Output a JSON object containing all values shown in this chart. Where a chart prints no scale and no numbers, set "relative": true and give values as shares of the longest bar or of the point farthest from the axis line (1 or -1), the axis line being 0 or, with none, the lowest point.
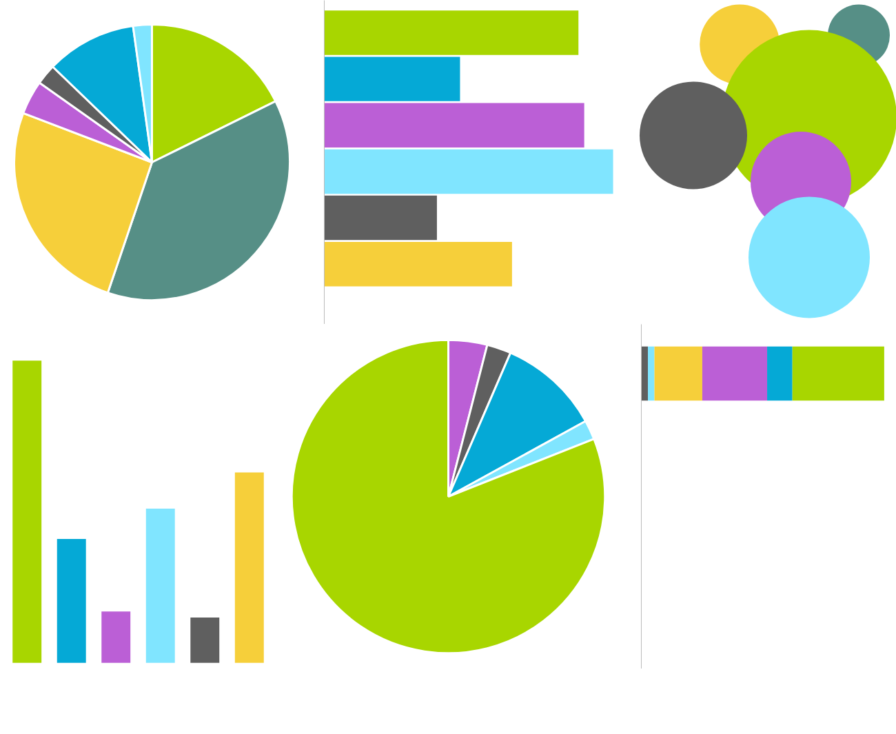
{
  "chart_data": [
    {
      "type": "pie",
      "categories": [
        null,
        null,
        null,
        null,
        null,
        null,
        null
      ],
      "values": [
        17.7,
        37.5,
        25.6,
        4,
        2.4,
        10.6,
        2.2
      ],
      "colors": [
        "#a8d600",
        "#568f86",
        "#f6cf3a",
        "#bb5fd6",
        "#5f5f5f",
        "#05a9d6",
        "#80e5ff"
      ]
    },
    {
      "type": "bar",
      "orientation": "horizontal",
      "relative": true,
      "categories": [
        null,
        null,
        null,
        null,
        null,
        null
      ],
      "values": [
        0.88,
        0.47,
        0.9,
        1,
        0.39,
        0.65
      ],
      "colors": [
        "#a8d600",
        "#05a9d6",
        "#bb5fd6",
        "#80e5ff",
        "#5f5f5f",
        "#f6cf3a"
      ]
    },
    {
      "type": "other",
      "colors": [
        "#f6cf3a",
        "#568f86",
        "#a8d600",
        "#5f5f5f",
        "#bb5fd6",
        "#80e5ff"
      ]
    },
    {
      "type": "bar",
      "relative": true,
      "categories": [
        null,
        null,
        null,
        null,
        null,
        null
      ],
      "values": [
        1,
        0.41,
        0.17,
        0.51,
        0.15,
        0.63
      ],
      "colors": [
        "#a8d600",
        "#05a9d6",
        "#bb5fd6",
        "#80e5ff",
        "#5f5f5f",
        "#f6cf3a"
      ]
    },
    {
      "type": "pie",
      "categories": [
        null,
        null,
        null,
        null,
        null
      ],
      "values": [
        4,
        2.5,
        10.5,
        2,
        81
      ],
      "colors": [
        "#bb5fd6",
        "#5f5f5f",
        "#05a9d6",
        "#80e5ff",
        "#a8d600"
      ]
    },
    {
      "type": "bar",
      "orientation": "horizontal",
      "stacked": true,
      "relative": true,
      "categories": [
        null
      ],
      "series": [
        {
          "color": "#5f5f5f",
          "values": [
            0.027
          ]
        },
        {
          "color": "#80e5ff",
          "values": [
            0.027
          ]
        },
        {
          "color": "#f6cf3a",
          "values": [
            0.197
          ]
        },
        {
          "color": "#bb5fd6",
          "values": [
            0.267
          ]
        },
        {
          "color": "#05a9d6",
          "values": [
            0.104
          ]
        },
        {
          "color": "#a8d600",
          "values": [
            0.378
          ]
        }
      ]
    }
  ]
}
